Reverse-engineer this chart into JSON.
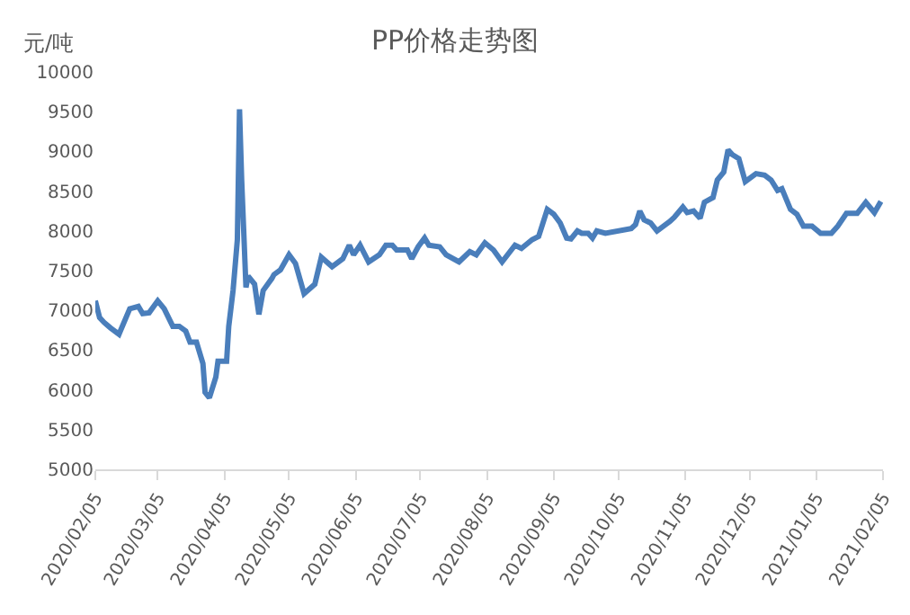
{
  "chart_data": {
    "type": "line",
    "title": "PP价格走势图",
    "ylabel": "元/吨",
    "x": [
      "2020-02-05",
      "2020-02-07",
      "2020-02-09",
      "2020-02-12",
      "2020-02-16",
      "2020-02-21",
      "2020-02-25",
      "2020-02-27",
      "2020-03-01",
      "2020-03-05",
      "2020-03-08",
      "2020-03-12",
      "2020-03-15",
      "2020-03-18",
      "2020-03-20",
      "2020-03-23",
      "2020-03-26",
      "2020-03-27",
      "2020-03-29",
      "2020-04-01",
      "2020-04-02",
      "2020-04-06",
      "2020-04-07",
      "2020-04-09",
      "2020-04-11",
      "2020-04-12",
      "2020-04-13",
      "2020-04-15",
      "2020-04-16",
      "2020-04-19",
      "2020-04-21",
      "2020-04-23",
      "2020-04-27",
      "2020-04-28",
      "2020-05-01",
      "2020-05-05",
      "2020-05-08",
      "2020-05-12",
      "2020-05-17",
      "2020-05-20",
      "2020-05-25",
      "2020-05-30",
      "2020-06-02",
      "2020-06-04",
      "2020-06-07",
      "2020-06-11",
      "2020-06-16",
      "2020-06-19",
      "2020-06-22",
      "2020-06-24",
      "2020-06-29",
      "2020-07-01",
      "2020-07-04",
      "2020-07-07",
      "2020-07-09",
      "2020-07-14",
      "2020-07-17",
      "2020-07-23",
      "2020-07-28",
      "2020-07-31",
      "2020-08-04",
      "2020-08-08",
      "2020-08-12",
      "2020-08-18",
      "2020-08-21",
      "2020-08-26",
      "2020-08-29",
      "2020-09-02",
      "2020-09-05",
      "2020-09-08",
      "2020-09-11",
      "2020-09-13",
      "2020-09-16",
      "2020-09-18",
      "2020-09-21",
      "2020-09-23",
      "2020-09-25",
      "2020-09-29",
      "2020-10-11",
      "2020-10-13",
      "2020-10-15",
      "2020-10-17",
      "2020-10-20",
      "2020-10-23",
      "2020-10-29",
      "2020-10-31",
      "2020-11-04",
      "2020-11-06",
      "2020-11-09",
      "2020-11-12",
      "2020-11-14",
      "2020-11-18",
      "2020-11-20",
      "2020-11-23",
      "2020-11-25",
      "2020-11-27",
      "2020-11-30",
      "2020-12-03",
      "2020-12-08",
      "2020-12-12",
      "2020-12-15",
      "2020-12-18",
      "2020-12-20",
      "2020-12-24",
      "2020-12-27",
      "2020-12-30",
      "2021-01-03",
      "2021-01-07",
      "2021-01-12",
      "2021-01-15",
      "2021-01-19",
      "2021-01-24",
      "2021-01-28",
      "2021-02-01",
      "2021-02-04"
    ],
    "series": [
      {
        "color": "#4a7ebb",
        "values": [
          7120,
          6910,
          6850,
          6780,
          6700,
          7020,
          7050,
          6960,
          6970,
          7120,
          7020,
          6800,
          6800,
          6740,
          6600,
          6600,
          6330,
          5970,
          5900,
          6160,
          6360,
          6360,
          6800,
          7250,
          7890,
          9530,
          8640,
          7290,
          7430,
          7330,
          6950,
          7250,
          7400,
          7450,
          7510,
          7700,
          7590,
          7210,
          7330,
          7670,
          7550,
          7650,
          7820,
          7700,
          7820,
          7610,
          7700,
          7820,
          7820,
          7760,
          7760,
          7650,
          7800,
          7910,
          7820,
          7800,
          7700,
          7610,
          7740,
          7700,
          7850,
          7760,
          7610,
          7820,
          7780,
          7890,
          7930,
          8270,
          8210,
          8100,
          7910,
          7900,
          8000,
          7970,
          7970,
          7910,
          8000,
          7970,
          8030,
          8080,
          8250,
          8140,
          8100,
          8000,
          8120,
          8170,
          8300,
          8230,
          8250,
          8160,
          8360,
          8420,
          8640,
          8740,
          9020,
          8960,
          8910,
          8620,
          8720,
          8700,
          8640,
          8510,
          8530,
          8270,
          8210,
          8060,
          8060,
          7970,
          7970,
          8060,
          8220,
          8220,
          8360,
          8230,
          8370
        ]
      }
    ],
    "xlim": [
      "2020-02-05",
      "2021-02-05"
    ],
    "xticks": [
      {
        "value": "2020-02-05",
        "label": "2020/02/05"
      },
      {
        "value": "2020-03-05",
        "label": "2020/03/05"
      },
      {
        "value": "2020-04-05",
        "label": "2020/04/05"
      },
      {
        "value": "2020-05-05",
        "label": "2020/05/05"
      },
      {
        "value": "2020-06-05",
        "label": "2020/06/05"
      },
      {
        "value": "2020-07-05",
        "label": "2020/07/05"
      },
      {
        "value": "2020-08-05",
        "label": "2020/08/05"
      },
      {
        "value": "2020-09-05",
        "label": "2020/09/05"
      },
      {
        "value": "2020-10-05",
        "label": "2020/10/05"
      },
      {
        "value": "2020-11-05",
        "label": "2020/11/05"
      },
      {
        "value": "2020-12-05",
        "label": "2020/12/05"
      },
      {
        "value": "2021-01-05",
        "label": "2021/01/05"
      },
      {
        "value": "2021-02-05",
        "label": "2021/02/05"
      }
    ],
    "ylim": [
      5000,
      10000
    ],
    "yticks": [
      5000,
      5500,
      6000,
      6500,
      7000,
      7500,
      8000,
      8500,
      9000,
      9500,
      10000
    ],
    "marker": "none",
    "line_style": "solid"
  }
}
